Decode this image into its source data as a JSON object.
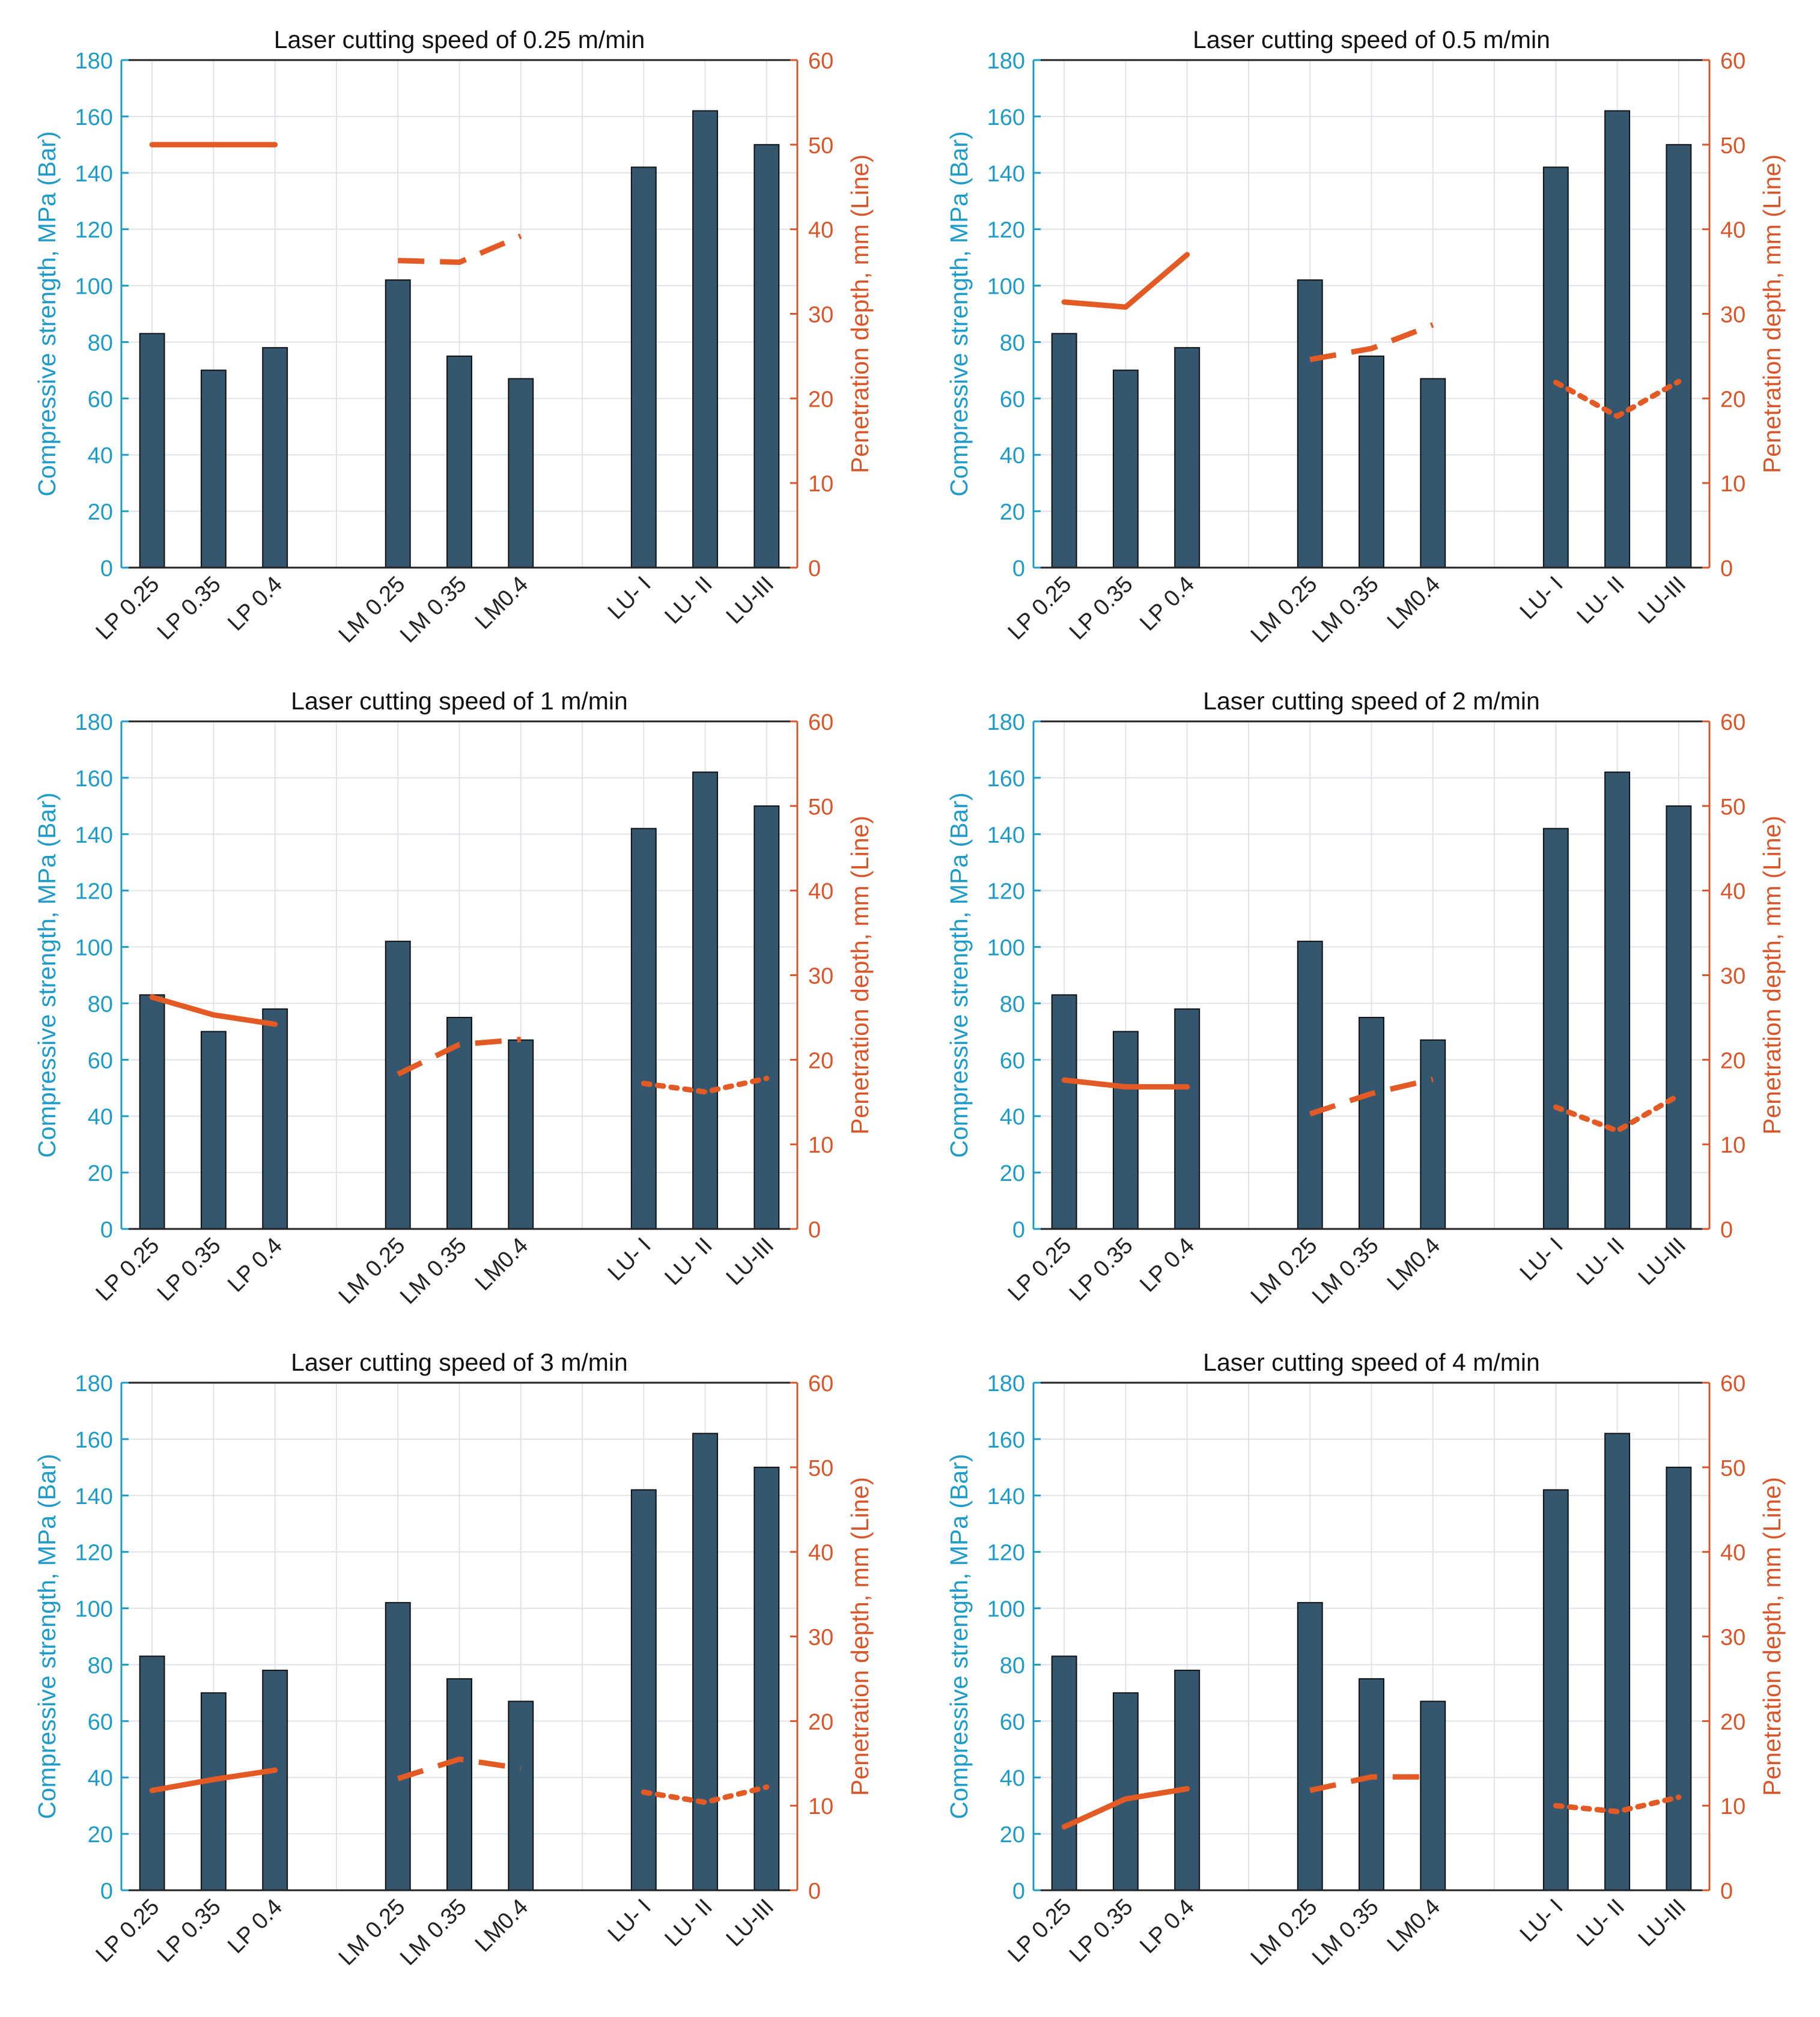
{
  "figure": {
    "left_axis_color": "#1e9bc8",
    "right_axis_color": "#d9562a",
    "bar_color": "#34566f",
    "line_color": "#e35a25",
    "grid_color": "#dfe3e8"
  },
  "chart_data": [
    {
      "type": "bar",
      "title": "Laser cutting speed of 0.25 m/min",
      "ylabel": "Compressive strength, MPa (Bar)",
      "y2label": "Penetration depth, mm (Line)",
      "categories": [
        "LP 0.25",
        "LP 0.35",
        "LP 0.4",
        "",
        "LM 0.25",
        "LM 0.35",
        "LM0.4",
        "",
        "LU- I",
        "LU- II",
        "LU-III"
      ],
      "ylim": [
        0,
        180
      ],
      "y2lim": [
        0,
        60
      ],
      "yticks": [
        "0",
        "20",
        "40",
        "60",
        "80",
        "100",
        "120",
        "140",
        "160",
        "180"
      ],
      "y2ticks": [
        "0",
        "10",
        "20",
        "30",
        "40",
        "50",
        "60"
      ],
      "bars": [
        83,
        70,
        78,
        null,
        102,
        75,
        67,
        null,
        142,
        162,
        150
      ],
      "lines": [
        {
          "group": "LP",
          "style": "solid",
          "x_index": [
            0,
            1,
            2
          ],
          "values": [
            50,
            50,
            50
          ]
        },
        {
          "group": "LM",
          "style": "dashed",
          "x_index": [
            4,
            5,
            6
          ],
          "values": [
            36.3,
            36.1,
            39.2
          ]
        }
      ]
    },
    {
      "type": "bar",
      "title": "Laser cutting speed of 0.5 m/min",
      "ylabel": "Compressive strength, MPa (Bar)",
      "y2label": "Penetration depth, mm (Line)",
      "categories": [
        "LP 0.25",
        "LP 0.35",
        "LP 0.4",
        "",
        "LM 0.25",
        "LM 0.35",
        "LM0.4",
        "",
        "LU- I",
        "LU- II",
        "LU-III"
      ],
      "ylim": [
        0,
        180
      ],
      "y2lim": [
        0,
        60
      ],
      "yticks": [
        "0",
        "20",
        "40",
        "60",
        "80",
        "100",
        "120",
        "140",
        "160",
        "180"
      ],
      "y2ticks": [
        "0",
        "10",
        "20",
        "30",
        "40",
        "50",
        "60"
      ],
      "bars": [
        83,
        70,
        78,
        null,
        102,
        75,
        67,
        null,
        142,
        162,
        150
      ],
      "lines": [
        {
          "group": "LP",
          "style": "solid",
          "x_index": [
            0,
            1,
            2
          ],
          "values": [
            31.4,
            30.8,
            37.0
          ]
        },
        {
          "group": "LM",
          "style": "dashed",
          "x_index": [
            4,
            5,
            6
          ],
          "values": [
            24.6,
            25.9,
            28.7
          ]
        },
        {
          "group": "LU",
          "style": "dotted",
          "x_index": [
            8,
            9,
            10
          ],
          "values": [
            21.9,
            17.9,
            22.0
          ]
        }
      ]
    },
    {
      "type": "bar",
      "title": "Laser cutting speed of 1 m/min",
      "ylabel": "Compressive strength, MPa (Bar)",
      "y2label": "Penetration depth, mm (Line)",
      "categories": [
        "LP 0.25",
        "LP 0.35",
        "LP 0.4",
        "",
        "LM 0.25",
        "LM 0.35",
        "LM0.4",
        "",
        "LU- I",
        "LU- II",
        "LU-III"
      ],
      "ylim": [
        0,
        180
      ],
      "y2lim": [
        0,
        60
      ],
      "yticks": [
        "0",
        "20",
        "40",
        "60",
        "80",
        "100",
        "120",
        "140",
        "160",
        "180"
      ],
      "y2ticks": [
        "0",
        "10",
        "20",
        "30",
        "40",
        "50",
        "60"
      ],
      "bars": [
        83,
        70,
        78,
        null,
        102,
        75,
        67,
        null,
        142,
        162,
        150
      ],
      "lines": [
        {
          "group": "LP",
          "style": "solid",
          "x_index": [
            0,
            1,
            2
          ],
          "values": [
            27.4,
            25.3,
            24.2
          ]
        },
        {
          "group": "LM",
          "style": "dashed",
          "x_index": [
            4,
            5,
            6
          ],
          "values": [
            18.3,
            21.8,
            22.4
          ]
        },
        {
          "group": "LU",
          "style": "dotted",
          "x_index": [
            8,
            9,
            10
          ],
          "values": [
            17.2,
            16.2,
            17.8
          ]
        }
      ]
    },
    {
      "type": "bar",
      "title": "Laser cutting speed of 2 m/min",
      "ylabel": "Compressive strength, MPa (Bar)",
      "y2label": "Penetration depth, mm (Line)",
      "categories": [
        "LP 0.25",
        "LP 0.35",
        "LP 0.4",
        "",
        "LM 0.25",
        "LM 0.35",
        "LM0.4",
        "",
        "LU- I",
        "LU- II",
        "LU-III"
      ],
      "ylim": [
        0,
        180
      ],
      "y2lim": [
        0,
        60
      ],
      "yticks": [
        "0",
        "20",
        "40",
        "60",
        "80",
        "100",
        "120",
        "140",
        "160",
        "180"
      ],
      "y2ticks": [
        "0",
        "10",
        "20",
        "30",
        "40",
        "50",
        "60"
      ],
      "bars": [
        83,
        70,
        78,
        null,
        102,
        75,
        67,
        null,
        142,
        162,
        150
      ],
      "lines": [
        {
          "group": "LP",
          "style": "solid",
          "x_index": [
            0,
            1,
            2
          ],
          "values": [
            17.6,
            16.8,
            16.8
          ]
        },
        {
          "group": "LM",
          "style": "dashed",
          "x_index": [
            4,
            5,
            6
          ],
          "values": [
            13.6,
            16.0,
            17.7
          ]
        },
        {
          "group": "LU",
          "style": "dotted",
          "x_index": [
            8,
            9,
            10
          ],
          "values": [
            14.4,
            11.6,
            15.8
          ]
        }
      ]
    },
    {
      "type": "bar",
      "title": "Laser cutting speed of 3 m/min",
      "ylabel": "Compressive strength, MPa (Bar)",
      "y2label": "Penetration depth, mm (Line)",
      "categories": [
        "LP 0.25",
        "LP 0.35",
        "LP 0.4",
        "",
        "LM 0.25",
        "LM 0.35",
        "LM0.4",
        "",
        "LU- I",
        "LU- II",
        "LU-III"
      ],
      "ylim": [
        0,
        180
      ],
      "y2lim": [
        0,
        60
      ],
      "yticks": [
        "0",
        "20",
        "40",
        "60",
        "80",
        "100",
        "120",
        "140",
        "160",
        "180"
      ],
      "y2ticks": [
        "0",
        "10",
        "20",
        "30",
        "40",
        "50",
        "60"
      ],
      "bars": [
        83,
        70,
        78,
        null,
        102,
        75,
        67,
        null,
        142,
        162,
        150
      ],
      "lines": [
        {
          "group": "LP",
          "style": "solid",
          "x_index": [
            0,
            1,
            2
          ],
          "values": [
            11.8,
            13.1,
            14.2
          ]
        },
        {
          "group": "LM",
          "style": "dashed",
          "x_index": [
            4,
            5,
            6
          ],
          "values": [
            13.2,
            15.5,
            14.4
          ]
        },
        {
          "group": "LU",
          "style": "dotted",
          "x_index": [
            8,
            9,
            10
          ],
          "values": [
            11.6,
            10.4,
            12.2
          ]
        }
      ]
    },
    {
      "type": "bar",
      "title": "Laser cutting speed of 4 m/min",
      "ylabel": "Compressive strength, MPa (Bar)",
      "y2label": "Penetration depth, mm (Line)",
      "categories": [
        "LP 0.25",
        "LP 0.35",
        "LP 0.4",
        "",
        "LM 0.25",
        "LM 0.35",
        "LM0.4",
        "",
        "LU- I",
        "LU- II",
        "LU-III"
      ],
      "ylim": [
        0,
        180
      ],
      "y2lim": [
        0,
        60
      ],
      "yticks": [
        "0",
        "20",
        "40",
        "60",
        "80",
        "100",
        "120",
        "140",
        "160",
        "180"
      ],
      "y2ticks": [
        "0",
        "10",
        "20",
        "30",
        "40",
        "50",
        "60"
      ],
      "bars": [
        83,
        70,
        78,
        null,
        102,
        75,
        67,
        null,
        142,
        162,
        150
      ],
      "lines": [
        {
          "group": "LP",
          "style": "solid",
          "x_index": [
            0,
            1,
            2
          ],
          "values": [
            7.5,
            10.8,
            12.0
          ]
        },
        {
          "group": "LM",
          "style": "dashed",
          "x_index": [
            4,
            5,
            6
          ],
          "values": [
            11.8,
            13.4,
            13.4
          ]
        },
        {
          "group": "LU",
          "style": "dotted",
          "x_index": [
            8,
            9,
            10
          ],
          "values": [
            10.0,
            9.3,
            11.0
          ]
        }
      ]
    }
  ]
}
